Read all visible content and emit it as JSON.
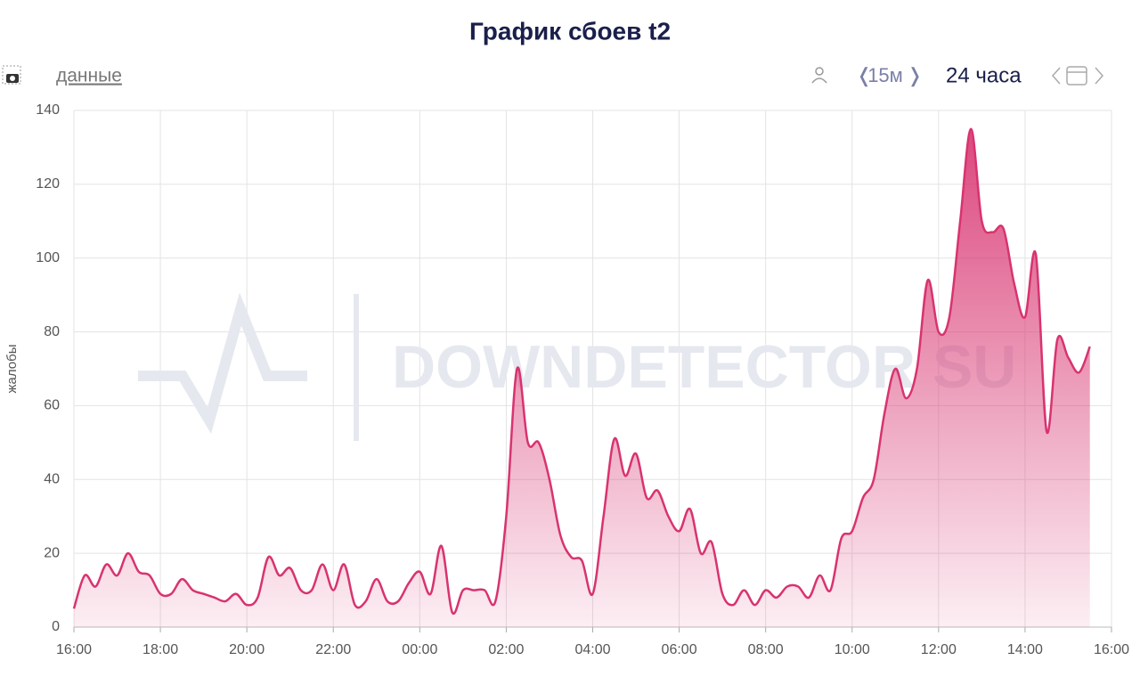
{
  "toolbar": {
    "data_link": "данные",
    "interval": "15м",
    "period": "24 часа"
  },
  "chart_data": {
    "type": "area",
    "title": "График сбоев t2",
    "y_label": "жалобы",
    "watermark": "DOWNDETECTOR SU",
    "color": "#d8336f",
    "grid": true,
    "xlim": [
      0,
      24
    ],
    "ylim": [
      0,
      140
    ],
    "xticks": [
      {
        "value": 0,
        "label": "16:00"
      },
      {
        "value": 2,
        "label": "18:00"
      },
      {
        "value": 4,
        "label": "20:00"
      },
      {
        "value": 6,
        "label": "22:00"
      },
      {
        "value": 8,
        "label": "00:00"
      },
      {
        "value": 10,
        "label": "02:00"
      },
      {
        "value": 12,
        "label": "04:00"
      },
      {
        "value": 14,
        "label": "06:00"
      },
      {
        "value": 16,
        "label": "08:00"
      },
      {
        "value": 18,
        "label": "10:00"
      },
      {
        "value": 20,
        "label": "12:00"
      },
      {
        "value": 22,
        "label": "14:00"
      },
      {
        "value": 24,
        "label": "16:00"
      }
    ],
    "yticks": [
      0,
      20,
      40,
      60,
      80,
      100,
      120,
      140
    ],
    "x": [
      0,
      0.25,
      0.5,
      0.75,
      1,
      1.25,
      1.5,
      1.75,
      2,
      2.25,
      2.5,
      2.75,
      3,
      3.25,
      3.5,
      3.75,
      4,
      4.25,
      4.5,
      4.75,
      5,
      5.25,
      5.5,
      5.75,
      6,
      6.25,
      6.5,
      6.75,
      7,
      7.25,
      7.5,
      7.75,
      8,
      8.25,
      8.5,
      8.75,
      9,
      9.25,
      9.5,
      9.75,
      10,
      10.25,
      10.5,
      10.75,
      11,
      11.25,
      11.5,
      11.75,
      12,
      12.25,
      12.5,
      12.75,
      13,
      13.25,
      13.5,
      13.75,
      14,
      14.25,
      14.5,
      14.75,
      15,
      15.25,
      15.5,
      15.75,
      16,
      16.25,
      16.5,
      16.75,
      17,
      17.25,
      17.5,
      17.75,
      18,
      18.25,
      18.5,
      18.75,
      19,
      19.25,
      19.5,
      19.75,
      20,
      20.25,
      20.5,
      20.75,
      21,
      21.25,
      21.5,
      21.75,
      22,
      22.25,
      22.5,
      22.75,
      23,
      23.25,
      23.5
    ],
    "values": [
      5,
      14,
      11,
      17,
      14,
      20,
      15,
      14,
      9,
      9,
      13,
      10,
      9,
      8,
      7,
      9,
      6,
      8,
      19,
      14,
      16,
      10,
      10,
      17,
      10,
      17,
      6,
      7,
      13,
      7,
      7,
      12,
      15,
      9,
      22,
      4,
      10,
      10,
      10,
      7,
      30,
      70,
      50,
      50,
      40,
      25,
      19,
      18,
      9,
      30,
      51,
      41,
      47,
      35,
      37,
      30,
      26,
      32,
      20,
      23,
      9,
      6,
      10,
      6,
      10,
      8,
      11,
      11,
      8,
      14,
      10,
      24,
      26,
      35,
      40,
      58,
      70,
      62,
      70,
      94,
      80,
      84,
      110,
      135,
      110,
      107,
      108,
      93,
      84,
      101,
      53,
      78,
      73,
      69,
      76
    ]
  }
}
